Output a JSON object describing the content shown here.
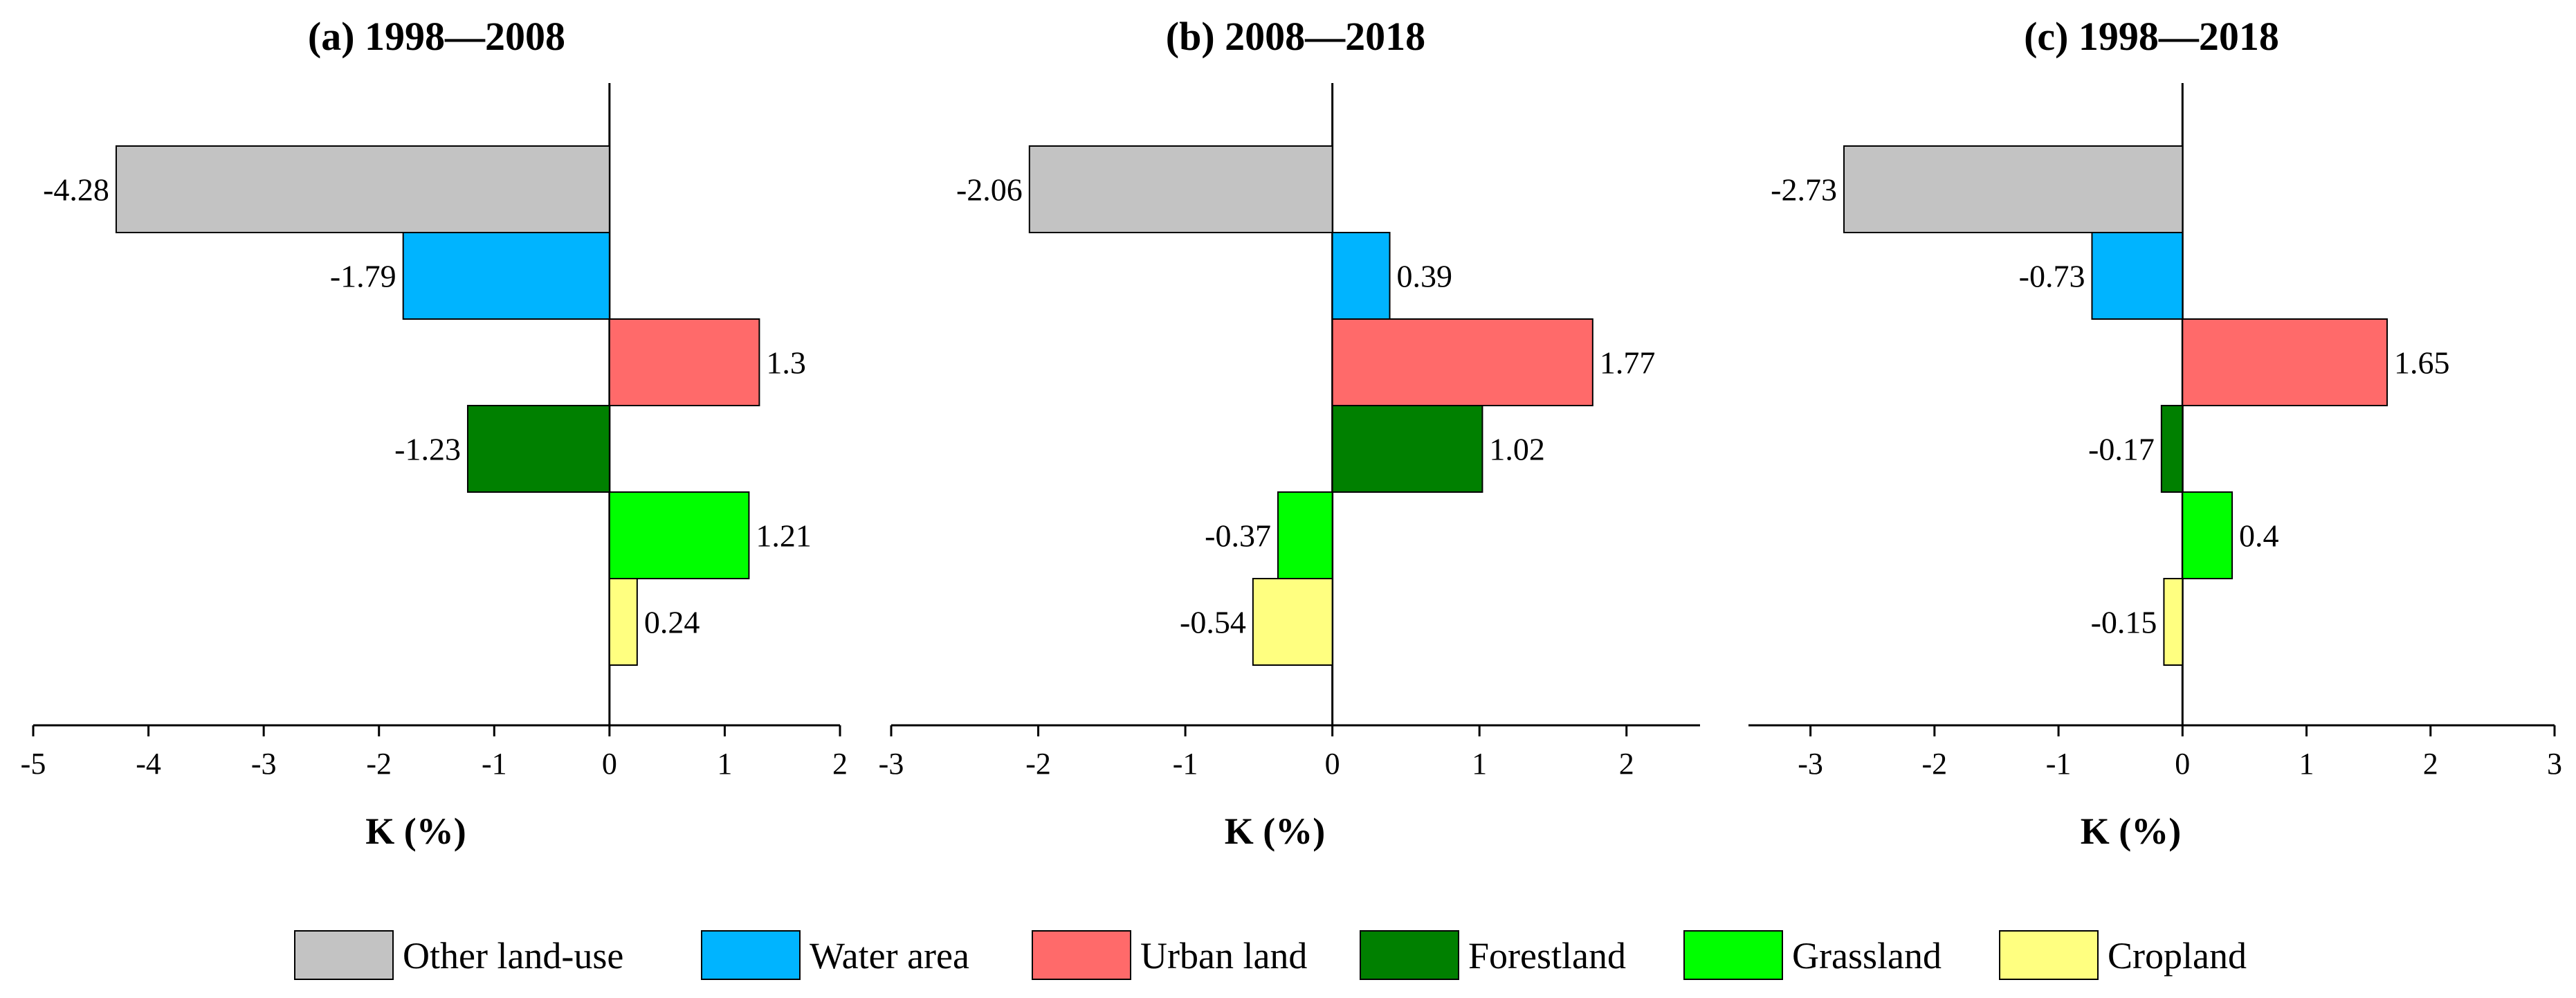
{
  "chart_data": [
    {
      "type": "bar",
      "orientation": "horizontal",
      "title": "(a) 1998—2008",
      "xlabel": "K (%)",
      "xlim": [
        -5,
        2
      ],
      "xticks": [
        -5,
        -4,
        -3,
        -2,
        -1,
        0,
        1,
        2
      ],
      "categories": [
        "Other land-use",
        "Water area",
        "Urban land",
        "Forestland",
        "Grassland",
        "Cropland"
      ],
      "values": [
        -4.28,
        -1.79,
        1.3,
        -1.23,
        1.21,
        0.24
      ],
      "value_labels": [
        "-4.28",
        "-1.79",
        "1.3",
        "-1.23",
        "1.21",
        "0.24"
      ]
    },
    {
      "type": "bar",
      "orientation": "horizontal",
      "title": "(b) 2008—2018",
      "xlabel": "K (%)",
      "xlim": [
        -3,
        2.5
      ],
      "xticks": [
        -3,
        -2,
        -1,
        0,
        1,
        2
      ],
      "categories": [
        "Other land-use",
        "Water area",
        "Urban land",
        "Forestland",
        "Grassland",
        "Cropland"
      ],
      "values": [
        -2.06,
        0.39,
        1.77,
        1.02,
        -0.37,
        -0.54
      ],
      "value_labels": [
        "-2.06",
        "0.39",
        "1.77",
        "1.02",
        "-0.37",
        "-0.54"
      ]
    },
    {
      "type": "bar",
      "orientation": "horizontal",
      "title": "(c) 1998—2018",
      "xlabel": "K (%)",
      "xlim": [
        -3.5,
        3
      ],
      "xticks": [
        -3,
        -2,
        -1,
        0,
        1,
        2,
        3
      ],
      "categories": [
        "Other land-use",
        "Water area",
        "Urban land",
        "Forestland",
        "Grassland",
        "Cropland"
      ],
      "values": [
        -2.73,
        -0.73,
        1.65,
        -0.17,
        0.4,
        -0.15
      ],
      "value_labels": [
        "-2.73",
        "-0.73",
        "1.65",
        "-0.17",
        "0.4",
        "-0.15"
      ]
    }
  ],
  "legend": {
    "position": "bottom-center",
    "items": [
      {
        "label": "Other land-use",
        "color": "#c3c3c3"
      },
      {
        "label": "Water area",
        "color": "#00b4ff"
      },
      {
        "label": "Urban land",
        "color": "#ff6a6a"
      },
      {
        "label": "Forestland",
        "color": "#008000"
      },
      {
        "label": "Grassland",
        "color": "#00ff00"
      },
      {
        "label": "Cropland",
        "color": "#ffff80"
      }
    ]
  }
}
